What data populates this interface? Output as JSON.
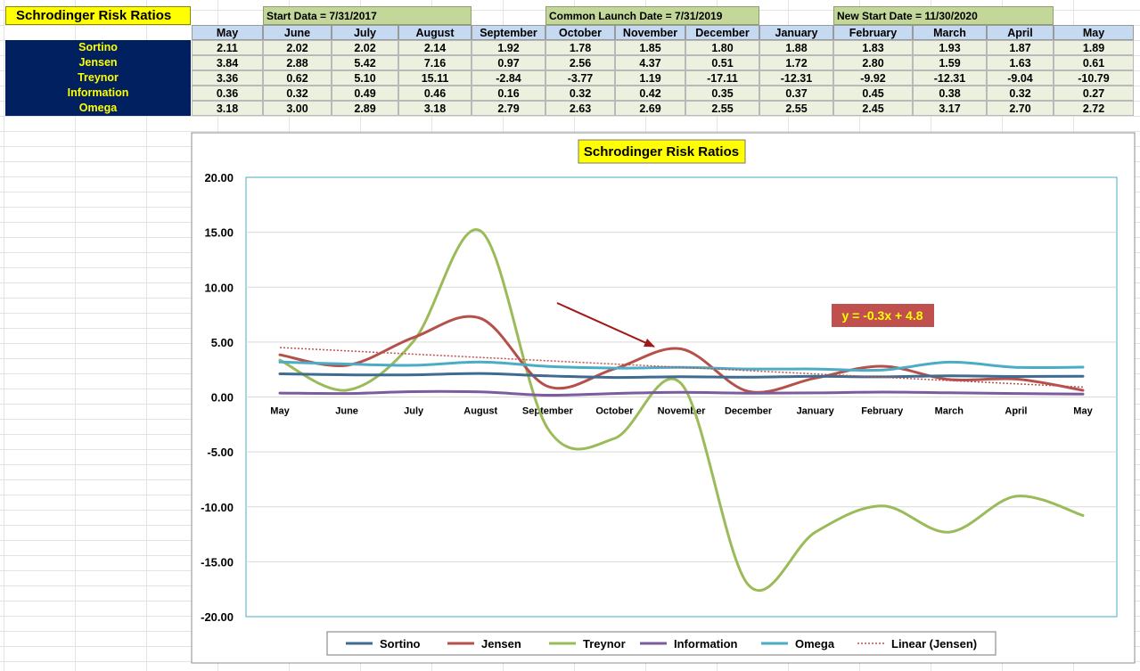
{
  "sheet": {
    "title": "Schrodinger Risk Ratios",
    "date_labels": [
      {
        "text": "Start Data = 7/31/2017"
      },
      {
        "text": "Common Launch Date = 7/31/2019"
      },
      {
        "text": "New Start Date = 11/30/2020"
      }
    ],
    "columns": [
      "May",
      "June",
      "July",
      "August",
      "September",
      "October",
      "November",
      "December",
      "January",
      "February",
      "March",
      "April",
      "May"
    ],
    "rows": [
      {
        "label": "Sortino",
        "values": [
          "2.11",
          "2.02",
          "2.02",
          "2.14",
          "1.92",
          "1.78",
          "1.85",
          "1.80",
          "1.88",
          "1.83",
          "1.93",
          "1.87",
          "1.89"
        ]
      },
      {
        "label": "Jensen",
        "values": [
          "3.84",
          "2.88",
          "5.42",
          "7.16",
          "0.97",
          "2.56",
          "4.37",
          "0.51",
          "1.72",
          "2.80",
          "1.59",
          "1.63",
          "0.61"
        ]
      },
      {
        "label": "Treynor",
        "values": [
          "3.36",
          "0.62",
          "5.10",
          "15.11",
          "-2.84",
          "-3.77",
          "1.19",
          "-17.11",
          "-12.31",
          "-9.92",
          "-12.31",
          "-9.04",
          "-10.79"
        ]
      },
      {
        "label": "Information",
        "values": [
          "0.36",
          "0.32",
          "0.49",
          "0.46",
          "0.16",
          "0.32",
          "0.42",
          "0.35",
          "0.37",
          "0.45",
          "0.38",
          "0.32",
          "0.27"
        ]
      },
      {
        "label": "Omega",
        "values": [
          "3.18",
          "3.00",
          "2.89",
          "3.18",
          "2.79",
          "2.63",
          "2.69",
          "2.55",
          "2.55",
          "2.45",
          "3.17",
          "2.70",
          "2.72"
        ]
      }
    ]
  },
  "chart_data": {
    "type": "line",
    "title": "Schrodinger Risk Ratios",
    "categories": [
      "May",
      "June",
      "July",
      "August",
      "September",
      "October",
      "November",
      "December",
      "January",
      "February",
      "March",
      "April",
      "May"
    ],
    "series": [
      {
        "name": "Sortino",
        "color": "#3e6b8f",
        "values": [
          2.11,
          2.02,
          2.02,
          2.14,
          1.92,
          1.78,
          1.85,
          1.8,
          1.88,
          1.83,
          1.93,
          1.87,
          1.89
        ]
      },
      {
        "name": "Jensen",
        "color": "#b5504a",
        "values": [
          3.84,
          2.88,
          5.42,
          7.16,
          0.97,
          2.56,
          4.37,
          0.51,
          1.72,
          2.8,
          1.59,
          1.63,
          0.61
        ]
      },
      {
        "name": "Treynor",
        "color": "#9bbb59",
        "values": [
          3.36,
          0.62,
          5.1,
          15.11,
          -2.84,
          -3.77,
          1.19,
          -17.11,
          -12.31,
          -9.92,
          -12.31,
          -9.04,
          -10.79
        ]
      },
      {
        "name": "Information",
        "color": "#7b5c9e",
        "values": [
          0.36,
          0.32,
          0.49,
          0.46,
          0.16,
          0.32,
          0.42,
          0.35,
          0.37,
          0.45,
          0.38,
          0.32,
          0.27
        ]
      },
      {
        "name": "Omega",
        "color": "#4aacc5",
        "values": [
          3.18,
          3.0,
          2.89,
          3.18,
          2.79,
          2.63,
          2.69,
          2.55,
          2.55,
          2.45,
          3.17,
          2.7,
          2.72
        ]
      }
    ],
    "trendline": {
      "name": "Linear (Jensen)",
      "series": "Jensen",
      "color": "#c0504d",
      "slope": -0.3,
      "intercept": 4.8
    },
    "equation_label": "y = -0.3x + 4.8",
    "ylim": [
      -20,
      20
    ],
    "yticks": [
      "20.00",
      "15.00",
      "10.00",
      "5.00",
      "0.00",
      "-5.00",
      "-10.00",
      "-15.00",
      "-20.00"
    ],
    "ytick_values": [
      20,
      15,
      10,
      5,
      0,
      -5,
      -10,
      -15,
      -20
    ],
    "grid": true,
    "legend_position": "bottom",
    "annotation_arrow_color": "#a01818"
  }
}
